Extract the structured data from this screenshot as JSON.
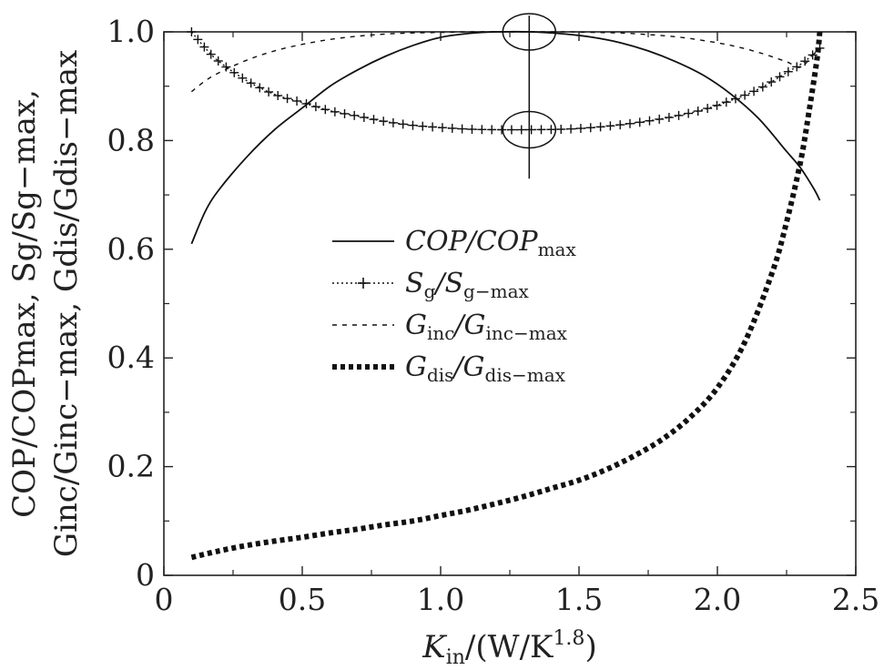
{
  "chart_data": {
    "type": "line",
    "title": "",
    "xlabel": "K_in/(W/K^1.8)",
    "xlabel_parts": {
      "base": "K",
      "sub": "in",
      "unit_open": "/(W/K",
      "sup": "1.8",
      "unit_close": ")"
    },
    "ylabel_line1": "COP/COPmax, Sg/Sg−max,",
    "ylabel_line2": "Ginc/Ginc−max, Gdis/Gdis−max",
    "xlim": [
      0,
      2.5
    ],
    "ylim": [
      0,
      1.0
    ],
    "x_ticks": [
      0,
      0.5,
      1.0,
      1.5,
      2.0,
      2.5
    ],
    "x_tick_labels": [
      "0",
      "0.5",
      "1.0",
      "1.5",
      "2.0",
      "2.5"
    ],
    "y_ticks": [
      0,
      0.2,
      0.4,
      0.6,
      0.8,
      1.0
    ],
    "y_tick_labels": [
      "0",
      "0.2",
      "0.4",
      "0.6",
      "0.8",
      "1.0"
    ],
    "grid": false,
    "legend_position": "center",
    "legend": [
      {
        "label": "COP/COPmax",
        "base": "COP/COP",
        "sub": "max",
        "style": "solid"
      },
      {
        "label": "Sg/Sg−max",
        "base": "S",
        "sub": "g",
        "mid": "/S",
        "sub2": "g−max",
        "style": "dotted-plus"
      },
      {
        "label": "Ginc/Ginc−max",
        "base": "G",
        "sub": "inc",
        "mid": "/G",
        "sub2": "inc−max",
        "style": "dashed"
      },
      {
        "label": "Gdis/Gdis−max",
        "base": "G",
        "sub": "dis",
        "mid": "/G",
        "sub2": "dis−max",
        "style": "thick-dotted"
      }
    ],
    "series": [
      {
        "name": "COP/COPmax",
        "style": "solid",
        "x": [
          0.1,
          0.15,
          0.2,
          0.3,
          0.4,
          0.5,
          0.6,
          0.7,
          0.8,
          0.9,
          1.0,
          1.1,
          1.2,
          1.33,
          1.45,
          1.55,
          1.65,
          1.75,
          1.85,
          1.95,
          2.05,
          2.15,
          2.25,
          2.3,
          2.35,
          2.37
        ],
        "y": [
          0.61,
          0.67,
          0.71,
          0.77,
          0.82,
          0.86,
          0.9,
          0.93,
          0.955,
          0.975,
          0.99,
          0.997,
          1.0,
          1.0,
          0.996,
          0.99,
          0.98,
          0.965,
          0.945,
          0.92,
          0.885,
          0.84,
          0.78,
          0.75,
          0.71,
          0.69
        ]
      },
      {
        "name": "Sg/Sg−max",
        "style": "dotted-plus",
        "x": [
          0.1,
          0.15,
          0.2,
          0.3,
          0.4,
          0.5,
          0.6,
          0.7,
          0.8,
          0.9,
          1.0,
          1.1,
          1.2,
          1.33,
          1.45,
          1.55,
          1.65,
          1.75,
          1.85,
          1.95,
          2.05,
          2.15,
          2.25,
          2.3,
          2.35,
          2.37
        ],
        "y": [
          1.0,
          0.97,
          0.945,
          0.91,
          0.885,
          0.87,
          0.855,
          0.845,
          0.835,
          0.828,
          0.824,
          0.821,
          0.82,
          0.82,
          0.821,
          0.824,
          0.829,
          0.836,
          0.845,
          0.857,
          0.874,
          0.895,
          0.925,
          0.94,
          0.96,
          0.97
        ]
      },
      {
        "name": "Ginc/Ginc−max",
        "style": "dashed",
        "x": [
          0.1,
          0.15,
          0.2,
          0.3,
          0.4,
          0.5,
          0.6,
          0.7,
          0.8,
          0.9,
          1.0,
          1.1,
          1.2,
          1.33,
          1.45,
          1.55,
          1.65,
          1.75,
          1.85,
          1.95,
          2.05,
          2.15,
          2.25,
          2.3,
          2.35,
          2.37
        ],
        "y": [
          0.89,
          0.91,
          0.925,
          0.948,
          0.965,
          0.977,
          0.986,
          0.992,
          0.996,
          0.998,
          0.999,
          1.0,
          1.0,
          1.0,
          1.0,
          0.999,
          0.998,
          0.995,
          0.991,
          0.984,
          0.975,
          0.962,
          0.945,
          0.935,
          0.96,
          0.97
        ]
      },
      {
        "name": "Gdis/Gdis−max",
        "style": "thick-dotted",
        "x": [
          0.1,
          0.2,
          0.3,
          0.4,
          0.5,
          0.6,
          0.7,
          0.8,
          0.9,
          1.0,
          1.1,
          1.2,
          1.3,
          1.4,
          1.5,
          1.6,
          1.7,
          1.8,
          1.9,
          2.0,
          2.1,
          2.2,
          2.25,
          2.3,
          2.33,
          2.36,
          2.37
        ],
        "y": [
          0.033,
          0.045,
          0.055,
          0.063,
          0.07,
          0.078,
          0.085,
          0.093,
          0.1,
          0.11,
          0.12,
          0.132,
          0.145,
          0.16,
          0.175,
          0.195,
          0.22,
          0.25,
          0.29,
          0.345,
          0.43,
          0.56,
          0.65,
          0.76,
          0.85,
          0.95,
          1.0
        ]
      }
    ],
    "annotations": [
      {
        "type": "ellipse",
        "x": 1.32,
        "y": 1.0,
        "label": ""
      },
      {
        "type": "ellipse",
        "x": 1.32,
        "y": 0.82,
        "label": ""
      },
      {
        "type": "vline",
        "x": 1.32,
        "y_range": [
          0.73,
          1.03
        ],
        "label": ""
      }
    ]
  }
}
